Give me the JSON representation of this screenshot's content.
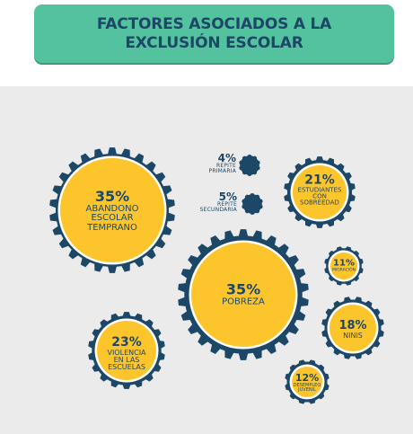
{
  "title": {
    "line1": "FACTORES ASOCIADOS A LA",
    "line2": "EXCLUSIÓN ESCOLAR"
  },
  "colors": {
    "banner": "#54c29f",
    "navy": "#1d4766",
    "yellow": "#fcc52c",
    "panel": "#ebebeb"
  },
  "factors": {
    "abandono": {
      "percent": "35%",
      "line1": "ABANDONO",
      "line2": "ESCOLAR",
      "line3": "TEMPRANO"
    },
    "pobreza": {
      "percent": "35%",
      "line1": "POBREZA"
    },
    "sobreedad": {
      "percent": "21%",
      "line1": "ESTUDIANTES",
      "line2": "CON",
      "line3": "SOBREEDAD"
    },
    "violencia": {
      "percent": "23%",
      "line1": "VIOLENCIA",
      "line2": "EN LAS",
      "line3": "ESCUELAS"
    },
    "ninis": {
      "percent": "18%",
      "line1": "NINIS"
    },
    "migracion": {
      "percent": "11%",
      "line1": "MIGRACIÓN"
    },
    "desempleo": {
      "percent": "12%",
      "line1": "DESEMPLEO",
      "line2": "JUVENIL"
    },
    "repite_primaria": {
      "percent": "4%",
      "line1": "REPITE",
      "line2": "PRIMARIA"
    },
    "repite_secundaria": {
      "percent": "5%",
      "line1": "REPITE",
      "line2": "SECUNDARIA"
    }
  }
}
